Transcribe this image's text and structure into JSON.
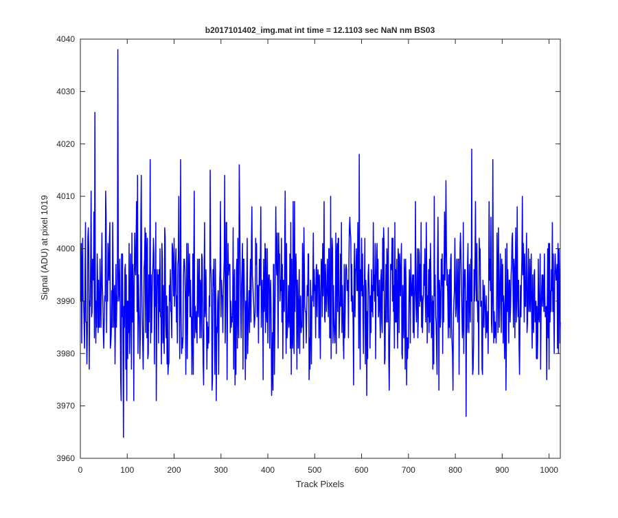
{
  "chart_data": {
    "type": "line",
    "title": "b2017101402_img.mat int time = 12.1103 sec  NaN nm BS03",
    "xlabel": "Track Pixels",
    "ylabel": "Signal (ADU) at pixel 1019",
    "xlim": [
      0,
      1024
    ],
    "ylim": [
      3960,
      4040
    ],
    "xticks": [
      "0",
      "100",
      "200",
      "300",
      "400",
      "500",
      "600",
      "700",
      "800",
      "900",
      "1000"
    ],
    "yticks": [
      "3960",
      "3970",
      "3980",
      "3990",
      "4000",
      "4010",
      "4020",
      "4030",
      "4040"
    ],
    "grid": false,
    "series": [
      {
        "color": "#0000ff",
        "noise_baseline": 3991,
        "noise_amplitude": 7,
        "x_count": 1024,
        "points": [
          [
            0,
            3990
          ],
          [
            3,
            3982
          ],
          [
            5,
            4002
          ],
          [
            8,
            3985
          ],
          [
            10,
            3995
          ],
          [
            14,
            3978
          ],
          [
            18,
            4000
          ],
          [
            20,
            3990
          ],
          [
            23,
            4011
          ],
          [
            26,
            3998
          ],
          [
            29,
            4007
          ],
          [
            31,
            4026
          ],
          [
            34,
            3990
          ],
          [
            38,
            3984
          ],
          [
            42,
            3998
          ],
          [
            46,
            4003
          ],
          [
            50,
            3981
          ],
          [
            54,
            4011
          ],
          [
            58,
            3990
          ],
          [
            62,
            4002
          ],
          [
            66,
            3984
          ],
          [
            70,
            3996
          ],
          [
            74,
            3978
          ],
          [
            77,
            3985
          ],
          [
            80,
            4038
          ],
          [
            83,
            3992
          ],
          [
            87,
            3971
          ],
          [
            90,
            3999
          ],
          [
            92,
            3964
          ],
          [
            95,
            3996
          ],
          [
            100,
            3990
          ],
          [
            105,
            3980
          ],
          [
            110,
            4003
          ],
          [
            114,
            3971
          ],
          [
            118,
            3995
          ],
          [
            122,
            4014
          ],
          [
            126,
            3986
          ],
          [
            130,
            4014
          ],
          [
            135,
            3984
          ],
          [
            140,
            4003
          ],
          [
            145,
            3980
          ],
          [
            149,
            4017
          ],
          [
            153,
            3990
          ],
          [
            158,
            3978
          ],
          [
            162,
            3971
          ],
          [
            166,
            3995
          ],
          [
            170,
            4000
          ],
          [
            176,
            3982
          ],
          [
            180,
            4004
          ],
          [
            185,
            3978
          ],
          [
            190,
            3993
          ],
          [
            195,
            3983
          ],
          [
            200,
            4002
          ],
          [
            205,
            3986
          ],
          [
            210,
            4010
          ],
          [
            214,
            4017
          ],
          [
            218,
            3981
          ],
          [
            223,
            3996
          ],
          [
            228,
            3979
          ],
          [
            233,
            3999
          ],
          [
            238,
            3976
          ],
          [
            243,
            4011
          ],
          [
            248,
            3988
          ],
          [
            253,
            3998
          ],
          [
            258,
            3983
          ],
          [
            263,
            3974
          ],
          [
            268,
            3996
          ],
          [
            273,
            3985
          ],
          [
            277,
            4015
          ],
          [
            281,
            3973
          ],
          [
            285,
            3998
          ],
          [
            290,
            3971
          ],
          [
            294,
            3992
          ],
          [
            299,
            4009
          ],
          [
            304,
            3984
          ],
          [
            308,
            4014
          ],
          [
            313,
            3975
          ],
          [
            317,
            3997
          ],
          [
            322,
            3985
          ],
          [
            326,
            4004
          ],
          [
            330,
            3974
          ],
          [
            334,
            3998
          ],
          [
            339,
            4016
          ],
          [
            343,
            3983
          ],
          [
            348,
            3998
          ],
          [
            352,
            3975
          ],
          [
            356,
            4002
          ],
          [
            361,
            3984
          ],
          [
            366,
            4008
          ],
          [
            371,
            3985
          ],
          [
            375,
            3997
          ],
          [
            380,
            3982
          ],
          [
            385,
            4008
          ],
          [
            390,
            3975
          ],
          [
            394,
            4001
          ],
          [
            398,
            3986
          ],
          [
            403,
            3995
          ],
          [
            408,
            3972
          ],
          [
            412,
            3997
          ],
          [
            417,
            4008
          ],
          [
            422,
            3981
          ],
          [
            427,
            3994
          ],
          [
            432,
            3979
          ],
          [
            437,
            4011
          ],
          [
            442,
            3985
          ],
          [
            447,
            3999
          ],
          [
            452,
            3983
          ],
          [
            457,
            4009
          ],
          [
            462,
            3977
          ],
          [
            467,
            3996
          ],
          [
            472,
            3986
          ],
          [
            477,
            4004
          ],
          [
            482,
            3982
          ],
          [
            487,
            3999
          ],
          [
            492,
            3986
          ],
          [
            497,
            4003
          ],
          [
            502,
            3983
          ],
          [
            507,
            3996
          ],
          [
            512,
            3979
          ],
          [
            517,
            4001
          ],
          [
            522,
            3986
          ],
          [
            527,
            3998
          ],
          [
            532,
            3983
          ],
          [
            537,
            4002
          ],
          [
            542,
            3984
          ],
          [
            547,
            3999
          ],
          [
            552,
            3983
          ],
          [
            557,
            4005
          ],
          [
            562,
            3979
          ],
          [
            567,
            3997
          ],
          [
            572,
            3983
          ],
          [
            577,
            4002
          ],
          [
            582,
            3985
          ],
          [
            587,
            3996
          ],
          [
            592,
            4005
          ],
          [
            595,
            4018
          ],
          [
            599,
            3992
          ],
          [
            603,
            3987
          ],
          [
            607,
            4002
          ],
          [
            611,
            3972
          ],
          [
            615,
            3997
          ],
          [
            620,
            3984
          ],
          [
            625,
            4005
          ],
          [
            630,
            3979
          ],
          [
            635,
            3998
          ],
          [
            640,
            3983
          ],
          [
            645,
            4002
          ],
          [
            650,
            3979
          ],
          [
            655,
            3997
          ],
          [
            660,
            3983
          ],
          [
            665,
            4002
          ],
          [
            670,
            3981
          ],
          [
            675,
            3998
          ],
          [
            680,
            3984
          ],
          [
            685,
            4001
          ],
          [
            690,
            3983
          ],
          [
            695,
            3993
          ],
          [
            700,
            3981
          ],
          [
            705,
            3999
          ],
          [
            710,
            3984
          ],
          [
            715,
            4009
          ],
          [
            720,
            3983
          ],
          [
            725,
            3997
          ],
          [
            730,
            3984
          ],
          [
            735,
            4000
          ],
          [
            740,
            3982
          ],
          [
            745,
            3998
          ],
          [
            750,
            3986
          ],
          [
            755,
            4010
          ],
          [
            760,
            3981
          ],
          [
            765,
            3973
          ],
          [
            770,
            3998
          ],
          [
            775,
            3986
          ],
          [
            780,
            4013
          ],
          [
            785,
            3983
          ],
          [
            790,
            3998
          ],
          [
            795,
            3973
          ],
          [
            800,
            3994
          ],
          [
            805,
            3986
          ],
          [
            810,
            4000
          ],
          [
            815,
            3983
          ],
          [
            820,
            3996
          ],
          [
            823,
            3968
          ],
          [
            827,
            4001
          ],
          [
            831,
            3990
          ],
          [
            835,
            4019
          ],
          [
            839,
            3982
          ],
          [
            843,
            4009
          ],
          [
            848,
            3986
          ],
          [
            853,
            4000
          ],
          [
            858,
            3976
          ],
          [
            862,
            3993
          ],
          [
            867,
            3984
          ],
          [
            872,
            4009
          ],
          [
            877,
            3986
          ],
          [
            880,
            4017
          ],
          [
            884,
            3983
          ],
          [
            889,
            4003
          ],
          [
            894,
            3985
          ],
          [
            899,
            3998
          ],
          [
            904,
            3989
          ],
          [
            908,
            3973
          ],
          [
            912,
            3996
          ],
          [
            917,
            3986
          ],
          [
            922,
            4003
          ],
          [
            927,
            3983
          ],
          [
            932,
            4008
          ],
          [
            937,
            3976
          ],
          [
            942,
            3998
          ],
          [
            947,
            3986
          ],
          [
            952,
            4003
          ],
          [
            957,
            3988
          ],
          [
            962,
            3999
          ],
          [
            967,
            3984
          ],
          [
            972,
            3990
          ],
          [
            977,
            3998
          ],
          [
            982,
            3977
          ],
          [
            987,
            3995
          ],
          [
            992,
            3987
          ],
          [
            997,
            4000
          ],
          [
            1002,
            3986
          ],
          [
            1007,
            4005
          ],
          [
            1011,
            3980
          ],
          [
            1015,
            3994
          ],
          [
            1019,
            4001
          ],
          [
            1024,
            3986
          ]
        ]
      }
    ]
  }
}
